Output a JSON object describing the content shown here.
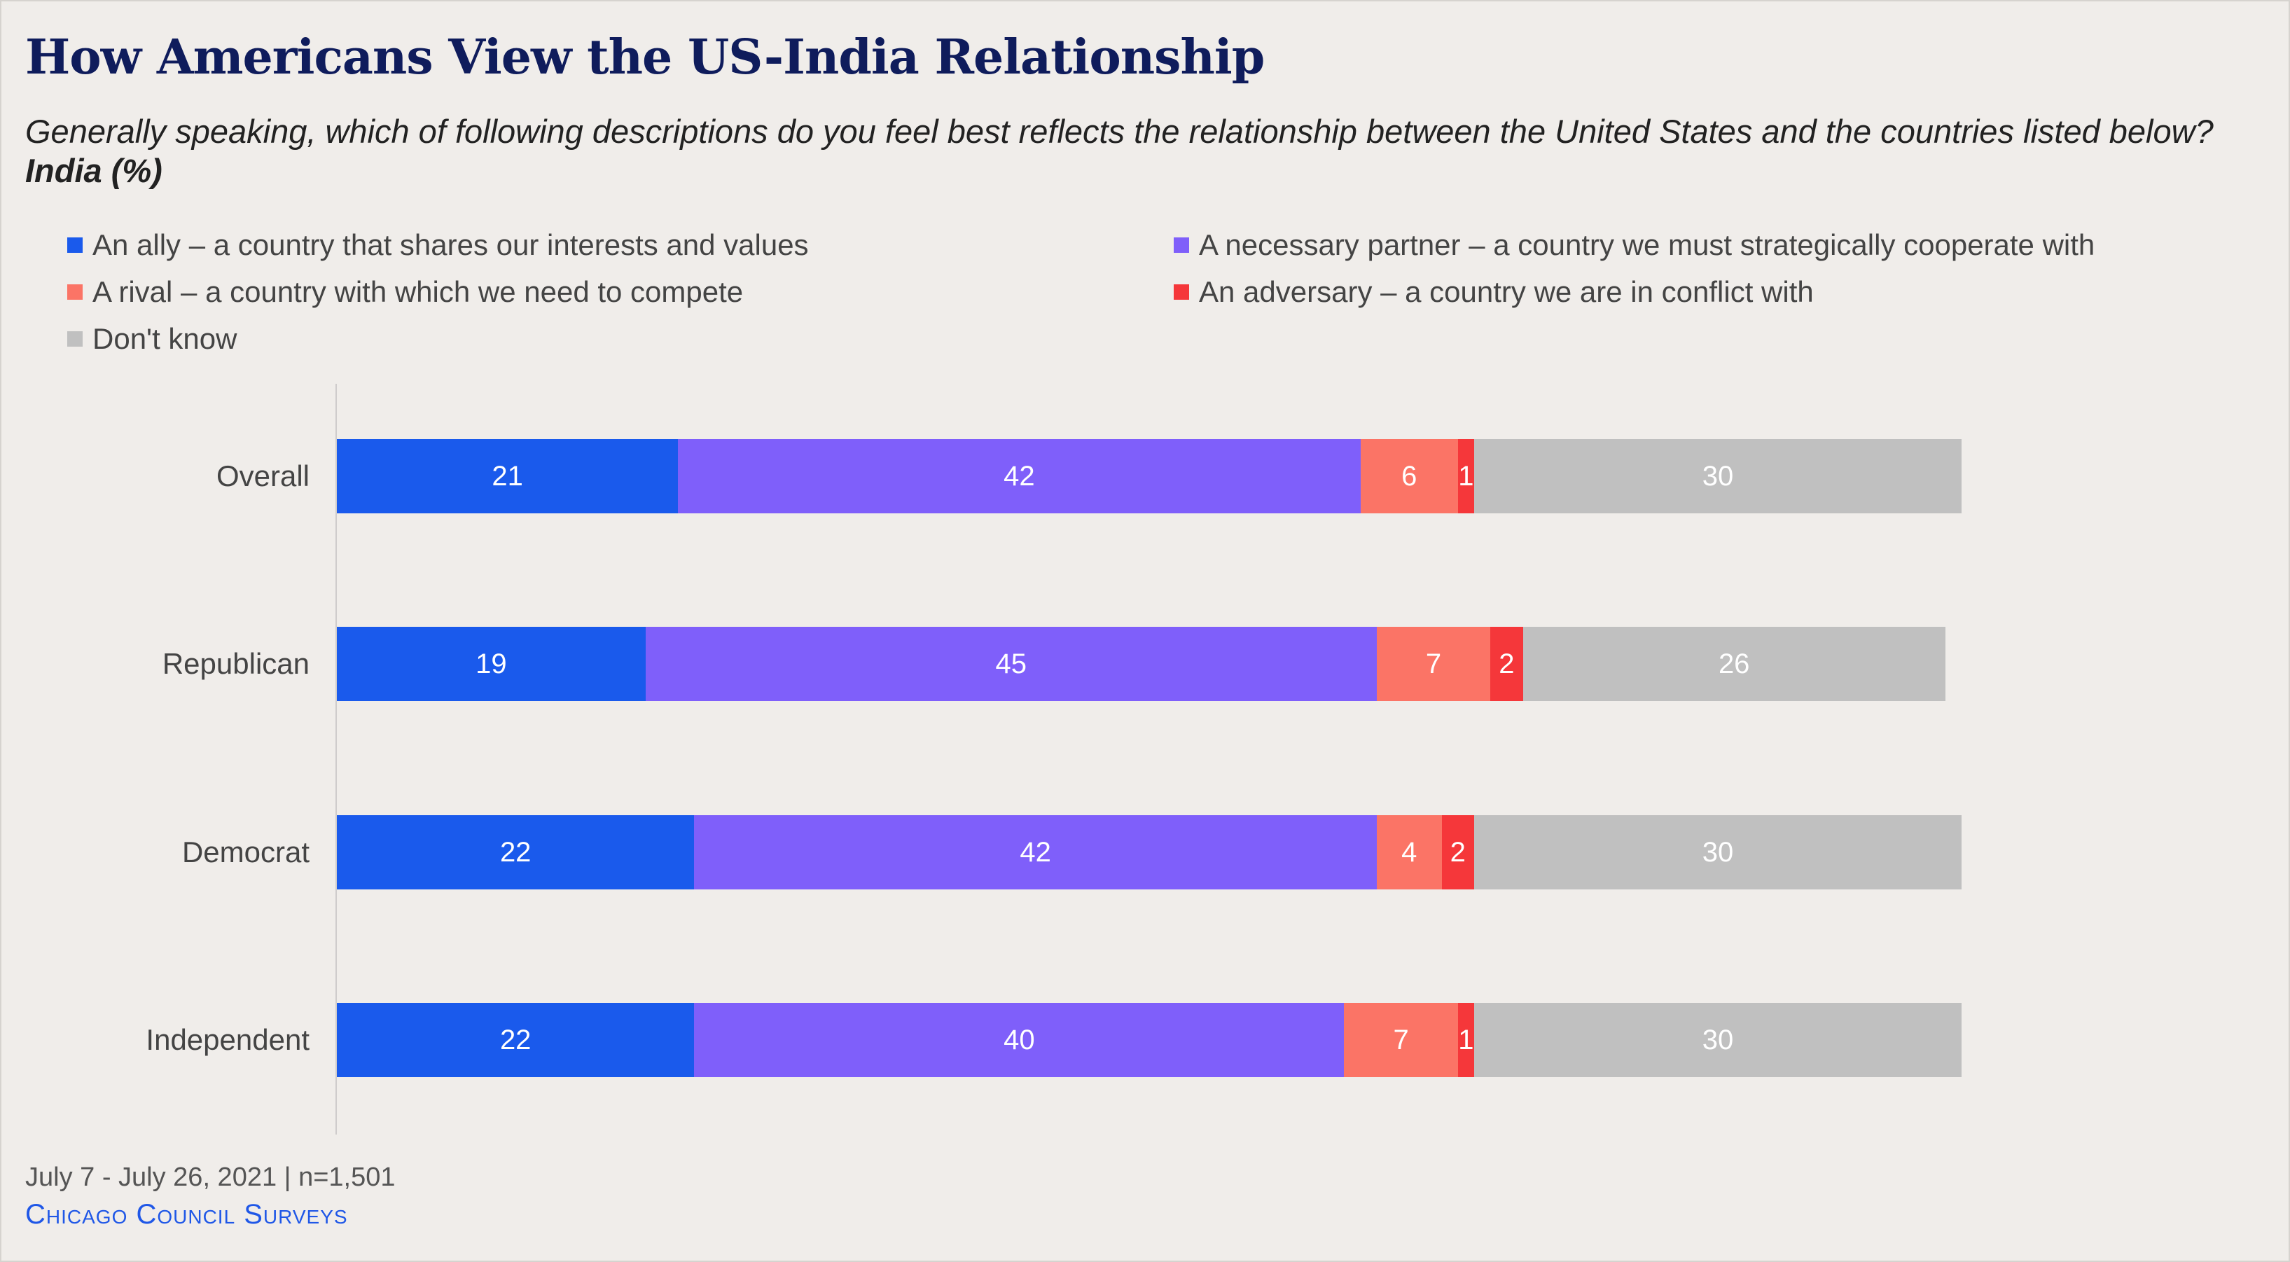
{
  "title": "How Americans View the US-India Relationship",
  "subtitle": {
    "question": "Generally speaking, which of following descriptions do you feel best reflects the relationship between the United States and the countries listed below?",
    "emphasis": "India (%)"
  },
  "footer": {
    "date_sample": "July 7 - July 26, 2021 | n=1,501",
    "source": "Chicago Council Surveys"
  },
  "chart_data": {
    "type": "bar",
    "orientation": "horizontal",
    "stacked": true,
    "categories": [
      "Overall",
      "Republican",
      "Democrat",
      "Independent"
    ],
    "series": [
      {
        "name": "An ally – a country that shares our interests and values",
        "color": "#1a5aec",
        "values": [
          21,
          19,
          22,
          22
        ]
      },
      {
        "name": "A necessary partner – a country we must strategically cooperate with",
        "color": "#7f5ffa",
        "values": [
          42,
          45,
          42,
          40
        ]
      },
      {
        "name": "A rival – a country with which we need to compete",
        "color": "#fb7466",
        "values": [
          6,
          7,
          4,
          7
        ]
      },
      {
        "name": "An adversary – a country we are in conflict with",
        "color": "#f5373a",
        "values": [
          1,
          2,
          2,
          1
        ]
      },
      {
        "name": "Don't know",
        "color": "#c0c0c0",
        "values": [
          30,
          26,
          30,
          30
        ]
      }
    ],
    "xlim": [
      0,
      100
    ],
    "grid": false,
    "legend_position": "top"
  }
}
